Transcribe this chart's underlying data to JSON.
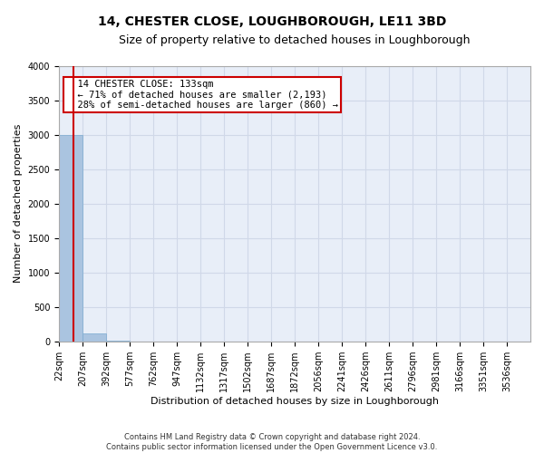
{
  "title": "14, CHESTER CLOSE, LOUGHBOROUGH, LE11 3BD",
  "subtitle": "Size of property relative to detached houses in Loughborough",
  "xlabel": "Distribution of detached houses by size in Loughborough",
  "ylabel": "Number of detached properties",
  "footer_line1": "Contains HM Land Registry data © Crown copyright and database right 2024.",
  "footer_line2": "Contains public sector information licensed under the Open Government Licence v3.0.",
  "annotation_title": "14 CHESTER CLOSE: 133sqm",
  "annotation_line1": "← 71% of detached houses are smaller (2,193)",
  "annotation_line2": "28% of semi-detached houses are larger (860) →",
  "property_size": 133,
  "bar_edges": [
    22,
    207,
    392,
    577,
    762,
    947,
    1132,
    1317,
    1502,
    1687,
    1872,
    2056,
    2241,
    2426,
    2611,
    2796,
    2981,
    3166,
    3351,
    3536,
    3721
  ],
  "bar_heights": [
    3000,
    120,
    5,
    2,
    1,
    1,
    1,
    1,
    0,
    0,
    0,
    0,
    0,
    0,
    0,
    0,
    0,
    0,
    0,
    0
  ],
  "bar_color": "#aac4e0",
  "bar_edge_color": "#7aaad0",
  "vline_color": "#cc0000",
  "vline_x": 133,
  "ylim": [
    0,
    4000
  ],
  "yticks": [
    0,
    500,
    1000,
    1500,
    2000,
    2500,
    3000,
    3500,
    4000
  ],
  "grid_color": "#d0d8e8",
  "background_color": "#e8eef8",
  "title_fontsize": 10,
  "subtitle_fontsize": 9,
  "axis_label_fontsize": 8,
  "tick_fontsize": 7,
  "annotation_box_color": "#cc0000",
  "annotation_fontsize": 7.5
}
